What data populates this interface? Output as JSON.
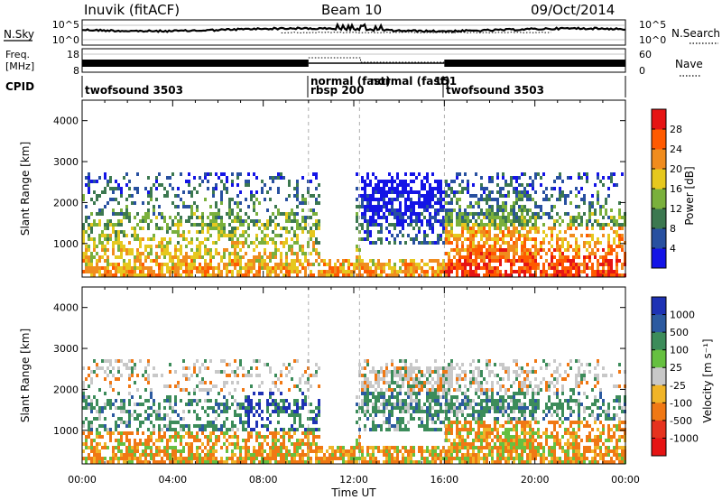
{
  "header": {
    "station": "Inuvik (fitACF)",
    "beam": "Beam 10",
    "date": "09/Oct/2014"
  },
  "top_panels": {
    "nsky": {
      "label": "N.Sky",
      "ticks": [
        "10^5",
        "10^0"
      ]
    },
    "nsearch": {
      "label": "N.Search",
      "ticks": [
        "10^5",
        "10^0"
      ]
    },
    "freq": {
      "label_lines": [
        "Freq.",
        "[MHz]"
      ],
      "ticks": [
        "18",
        "8"
      ]
    },
    "nave": {
      "label": "Nave",
      "ticks": [
        "60",
        "0"
      ]
    },
    "cpid": {
      "label": "CPID",
      "segments": [
        {
          "text": "twofsound 3503"
        },
        {
          "text": "normal (fast)"
        },
        {
          "text": "normal (fast)"
        },
        {
          "text": "151"
        },
        {
          "text": "rbsp 200"
        },
        {
          "text": "twofsound 3503"
        }
      ]
    }
  },
  "chart_data": [
    {
      "type": "heatmap",
      "name": "power",
      "ylabel": "Slant Range [km]",
      "yticks": [
        "1000",
        "2000",
        "3000",
        "4000"
      ],
      "ylim": [
        180,
        4500
      ],
      "xlim": [
        0,
        24
      ],
      "colorbar": {
        "label": "Power [dB]",
        "ticks": [
          "4",
          "8",
          "12",
          "16",
          "20",
          "24",
          "28"
        ],
        "colors": [
          "#1414e6",
          "#2850a0",
          "#3c7850",
          "#7ab03c",
          "#e6c81e",
          "#f08c1e",
          "#ff5a00",
          "#e61414"
        ]
      }
    },
    {
      "type": "heatmap",
      "name": "velocity",
      "ylabel": "Slant Range [km]",
      "xlabel": "Time UT",
      "xticks": [
        "00:00",
        "04:00",
        "08:00",
        "12:00",
        "16:00",
        "20:00",
        "00:00"
      ],
      "yticks": [
        "1000",
        "2000",
        "3000",
        "4000"
      ],
      "ylim": [
        180,
        4500
      ],
      "xlim": [
        0,
        24
      ],
      "colorbar": {
        "label": "Velocity [m s⁻¹]",
        "ticks": [
          "1000",
          "500",
          "100",
          "25",
          "-25",
          "-100",
          "-500",
          "-1000"
        ],
        "colors": [
          "#1e32b4",
          "#2c5aa0",
          "#3c8c5a",
          "#66c040",
          "#c8c8c8",
          "#f0b428",
          "#f07814",
          "#e6321e",
          "#e61414"
        ]
      }
    }
  ]
}
